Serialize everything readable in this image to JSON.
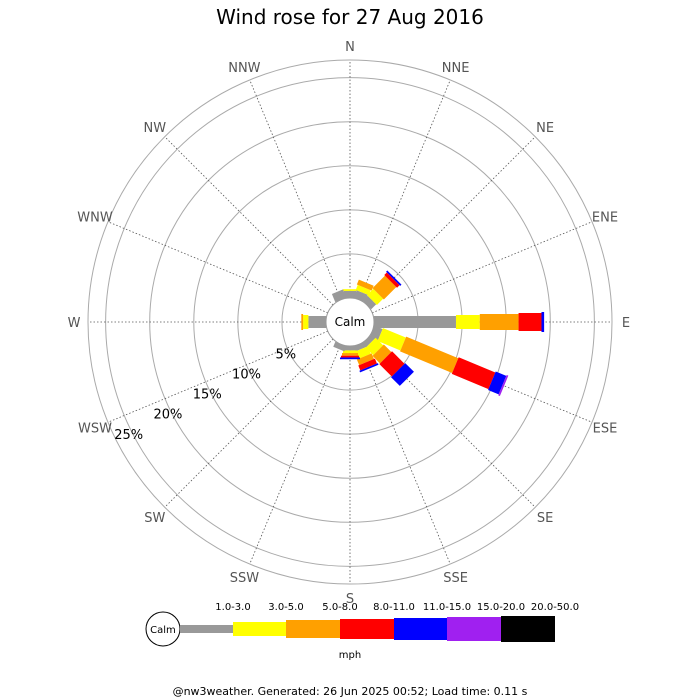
{
  "chart_data": {
    "type": "wind-rose",
    "title": "Wind rose for 27 Aug 2016",
    "directions": [
      "N",
      "NNE",
      "NE",
      "ENE",
      "E",
      "ESE",
      "SE",
      "SSE",
      "S",
      "SSW",
      "SW",
      "WSW",
      "W",
      "WNW",
      "NW",
      "NNW"
    ],
    "radial_ticks": [
      "5%",
      "10%",
      "15%",
      "20%",
      "25%"
    ],
    "radial_max": 27,
    "calm_label": "Calm",
    "bins": [
      {
        "label": "1.0-3.0",
        "color": "#999999"
      },
      {
        "label": "3.0-5.0",
        "color": "#ffff00"
      },
      {
        "label": "5.0-8.0",
        "color": "#ffa000"
      },
      {
        "label": "8.0-11.0",
        "color": "#ff0000"
      },
      {
        "label": "11.0-15.0",
        "color": "#0000ff"
      },
      {
        "label": "15.0-20.0",
        "color": "#a020f0"
      },
      {
        "label": "20.0-50.0",
        "color": "#000000"
      }
    ],
    "series": {
      "N": [
        0.8,
        0.2,
        0,
        0,
        0,
        0,
        0
      ],
      "NNE": [
        0.9,
        0.6,
        0.6,
        0,
        0,
        0,
        0
      ],
      "NE": [
        0.8,
        1.0,
        2.0,
        0.4,
        0.2,
        0,
        0
      ],
      "ENE": [
        0,
        0,
        0,
        0,
        0,
        0,
        0
      ],
      "E": [
        9.3,
        2.7,
        4.4,
        2.6,
        0.3,
        0,
        0
      ],
      "ESE": [
        1.0,
        2.8,
        6.4,
        4.5,
        1.3,
        0.2,
        0
      ],
      "SE": [
        0.6,
        1.2,
        1.2,
        2.0,
        1.4,
        0,
        0
      ],
      "SSE": [
        0.6,
        0.9,
        0.7,
        0.6,
        0.2,
        0,
        0
      ],
      "S": [
        0.5,
        0.3,
        0.3,
        0.2,
        0.2,
        0,
        0
      ],
      "SSW": [
        0.6,
        0,
        0,
        0,
        0,
        0,
        0
      ],
      "SW": [
        0,
        0,
        0,
        0,
        0,
        0,
        0
      ],
      "WSW": [
        0,
        0,
        0,
        0,
        0,
        0,
        0
      ],
      "W": [
        2.0,
        0.6,
        0.2,
        0,
        0,
        0,
        0
      ],
      "WNW": [
        0,
        0,
        0,
        0,
        0,
        0,
        0
      ],
      "NW": [
        0,
        0,
        0,
        0,
        0,
        0,
        0
      ],
      "NNW": [
        1.0,
        0,
        0,
        0,
        0,
        0,
        0
      ]
    },
    "legend_position": "bottom",
    "legend_unit": "mph"
  },
  "footer": "@nw3weather. Generated: 26 Jun 2025 00:52; Load time: 0.11 s"
}
